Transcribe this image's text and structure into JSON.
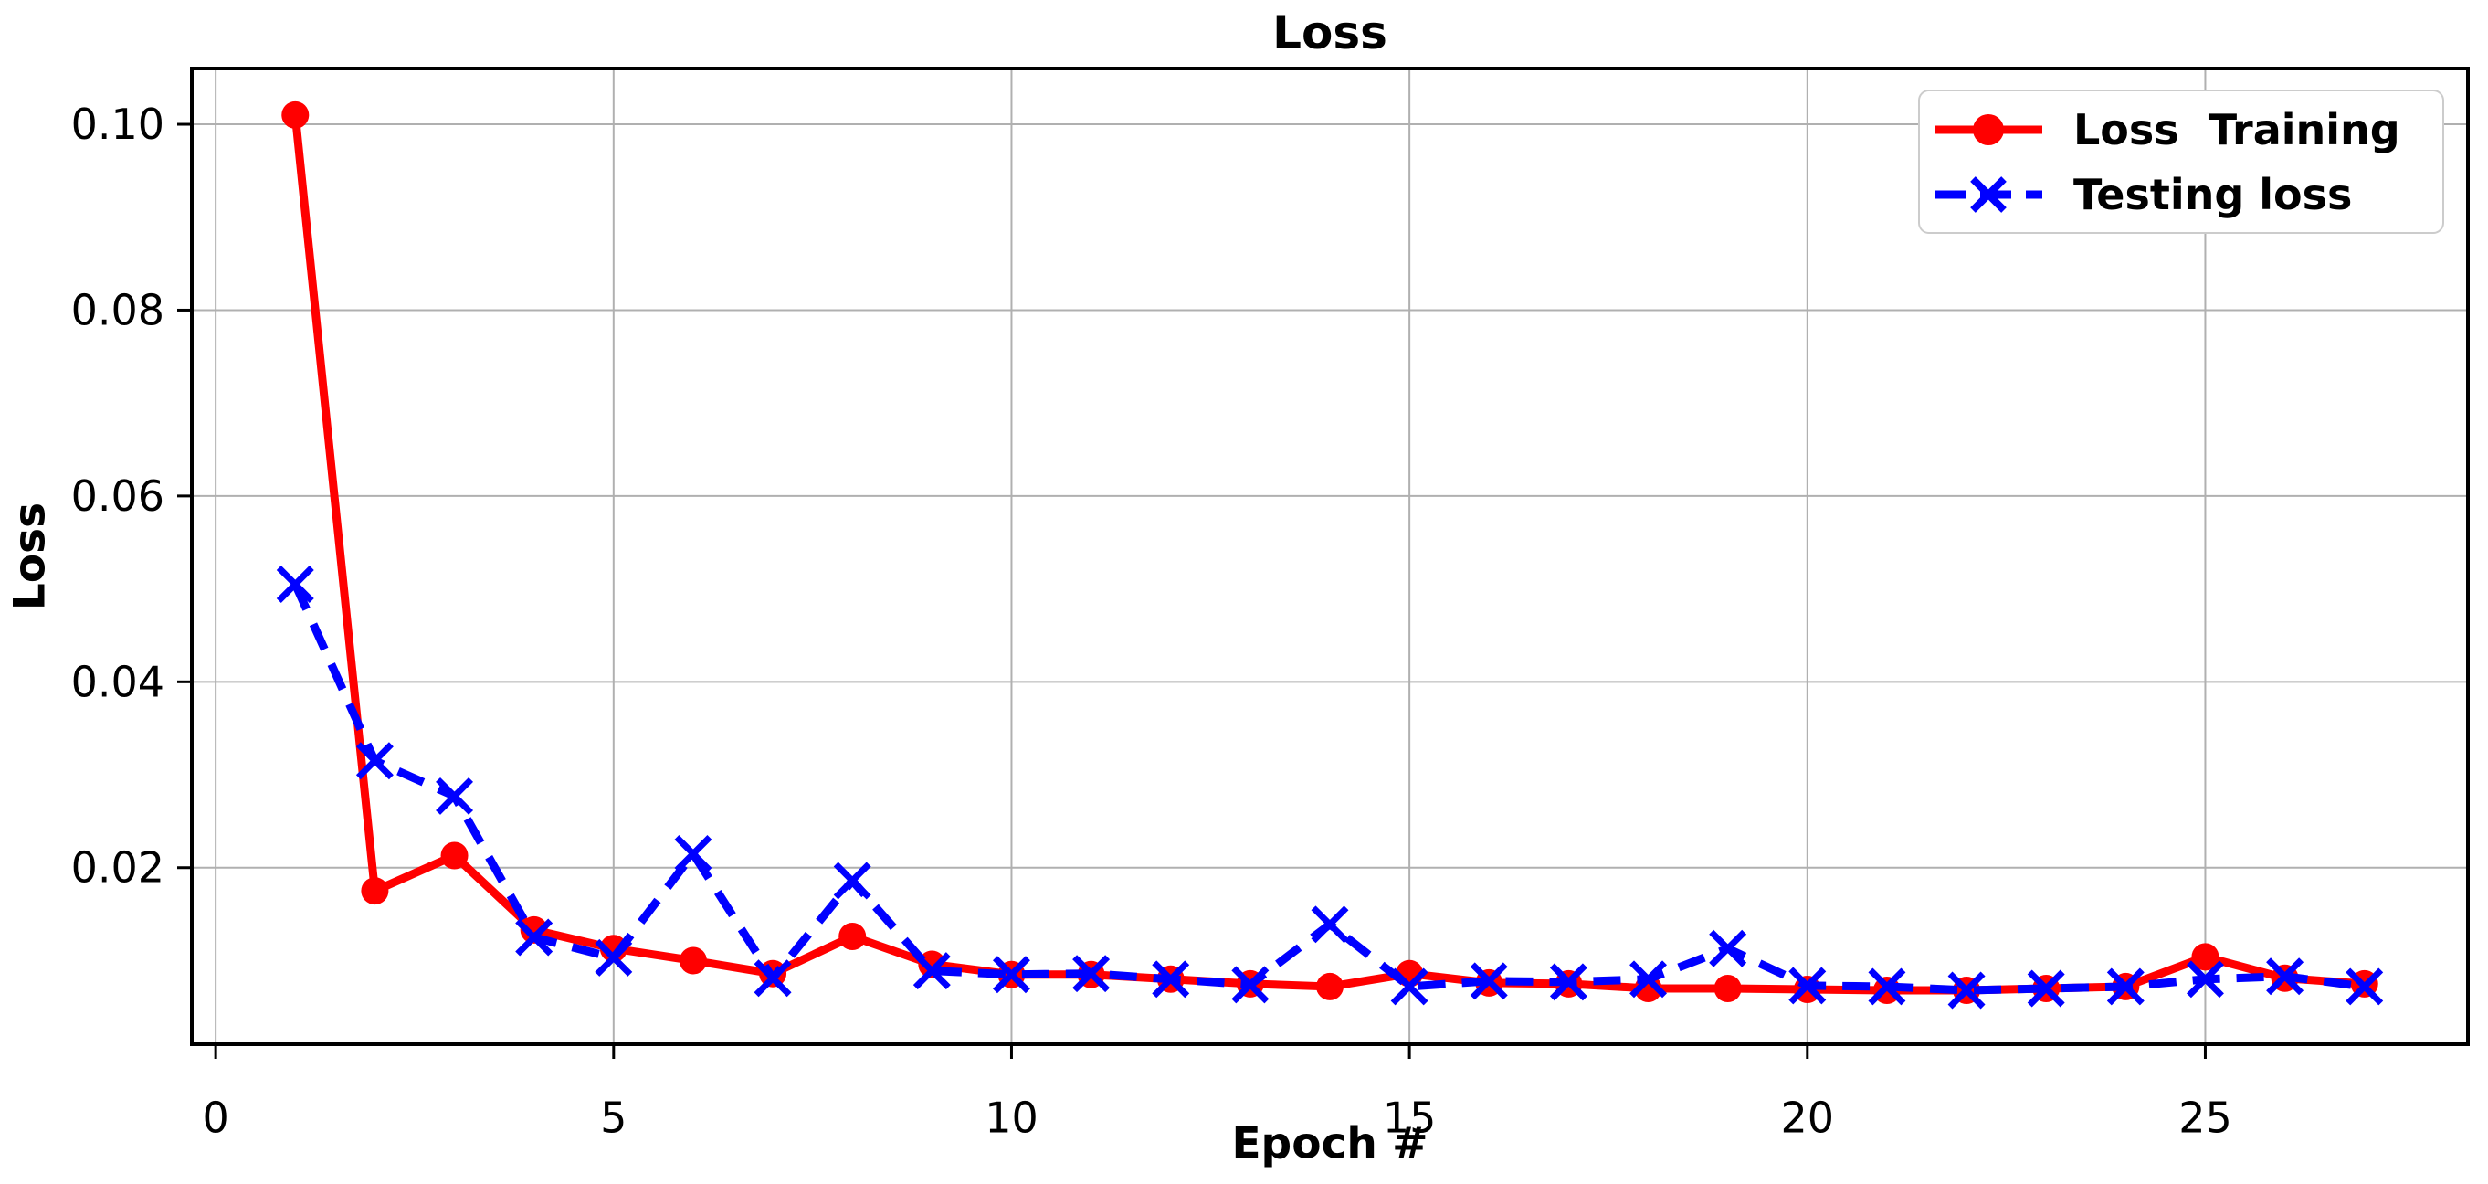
{
  "title": "Loss",
  "chart_data": {
    "type": "line",
    "title": "Loss",
    "xlabel": "Epoch #",
    "ylabel": "Loss",
    "xlim": [
      -0.3,
      28.3
    ],
    "ylim": [
      0.001,
      0.106
    ],
    "xticks": [
      0,
      5,
      10,
      15,
      20,
      25
    ],
    "xtick_labels": [
      "0",
      "5",
      "10",
      "15",
      "20",
      "25"
    ],
    "yticks": [
      0.02,
      0.04,
      0.06,
      0.08,
      0.1
    ],
    "ytick_labels": [
      "0.02",
      "0.04",
      "0.06",
      "0.08",
      "0.10"
    ],
    "grid": true,
    "grid_color": "#b0b0b0",
    "legend_position": "upper right",
    "x": [
      1,
      2,
      3,
      4,
      5,
      6,
      7,
      8,
      9,
      10,
      11,
      12,
      13,
      14,
      15,
      16,
      17,
      18,
      19,
      20,
      21,
      22,
      23,
      24,
      25,
      26,
      27
    ],
    "series": [
      {
        "name": "Loss  Training",
        "color": "#ff0000",
        "style": "solid",
        "marker": "circle",
        "values": [
          0.101,
          0.0175,
          0.0213,
          0.0133,
          0.0113,
          0.01,
          0.0086,
          0.0126,
          0.0096,
          0.0085,
          0.0085,
          0.008,
          0.0075,
          0.0072,
          0.0086,
          0.0076,
          0.0075,
          0.007,
          0.007,
          0.0069,
          0.0068,
          0.0068,
          0.007,
          0.0072,
          0.0104,
          0.0081,
          0.0075
        ]
      },
      {
        "name": "Testing loss",
        "color": "#0000ff",
        "style": "dashed",
        "marker": "x",
        "values": [
          0.0505,
          0.0315,
          0.0277,
          0.0125,
          0.0103,
          0.0215,
          0.0081,
          0.0186,
          0.0089,
          0.0085,
          0.0086,
          0.008,
          0.0074,
          0.0139,
          0.0072,
          0.0078,
          0.0077,
          0.008,
          0.0113,
          0.0073,
          0.0072,
          0.0068,
          0.007,
          0.0072,
          0.008,
          0.0083,
          0.0072
        ]
      }
    ]
  }
}
